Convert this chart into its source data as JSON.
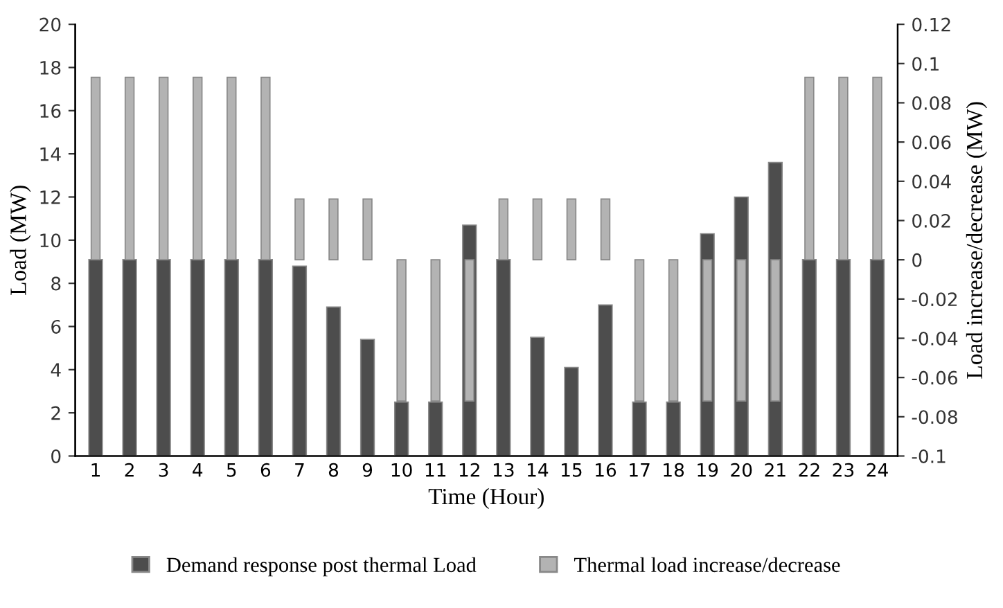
{
  "chart_data": {
    "type": "bar",
    "xlabel": "Time (Hour)",
    "ylabel": "Load (MW)",
    "y2label": "Load increase/decrease (MW)",
    "categories": [
      "1",
      "2",
      "3",
      "4",
      "5",
      "6",
      "7",
      "8",
      "9",
      "10",
      "11",
      "12",
      "13",
      "14",
      "15",
      "16",
      "17",
      "18",
      "19",
      "20",
      "21",
      "22",
      "23",
      "24"
    ],
    "series": [
      {
        "name": "Demand response post thermal Load",
        "color": "#4d4d4d",
        "values": [
          9.1,
          9.1,
          9.1,
          9.1,
          9.1,
          9.1,
          8.8,
          6.9,
          5.4,
          2.5,
          2.5,
          10.7,
          9.1,
          5.5,
          4.1,
          7.0,
          2.5,
          2.5,
          10.3,
          12.0,
          13.6,
          9.1,
          9.1,
          9.1
        ]
      },
      {
        "name": "Thermal load increase/decrease",
        "color": "#b3b3b3",
        "axis": "y2",
        "values": [
          0.093,
          0.093,
          0.093,
          0.093,
          0.093,
          0.093,
          0.031,
          0.031,
          0.031,
          -0.072,
          -0.072,
          -0.072,
          0.031,
          0.031,
          0.031,
          0.031,
          -0.072,
          -0.072,
          -0.072,
          -0.072,
          -0.072,
          0.093,
          0.093,
          0.093
        ]
      }
    ],
    "ylim": [
      0,
      20
    ],
    "yticks": [
      0,
      2,
      4,
      6,
      8,
      10,
      12,
      14,
      16,
      18,
      20
    ],
    "y2lim": [
      -0.1,
      0.12
    ],
    "y2ticks": [
      -0.1,
      -0.08,
      -0.06,
      -0.04,
      -0.02,
      0,
      0.02,
      0.04,
      0.06,
      0.08,
      0.1,
      0.12
    ],
    "grid": false,
    "legend": "bottom"
  }
}
